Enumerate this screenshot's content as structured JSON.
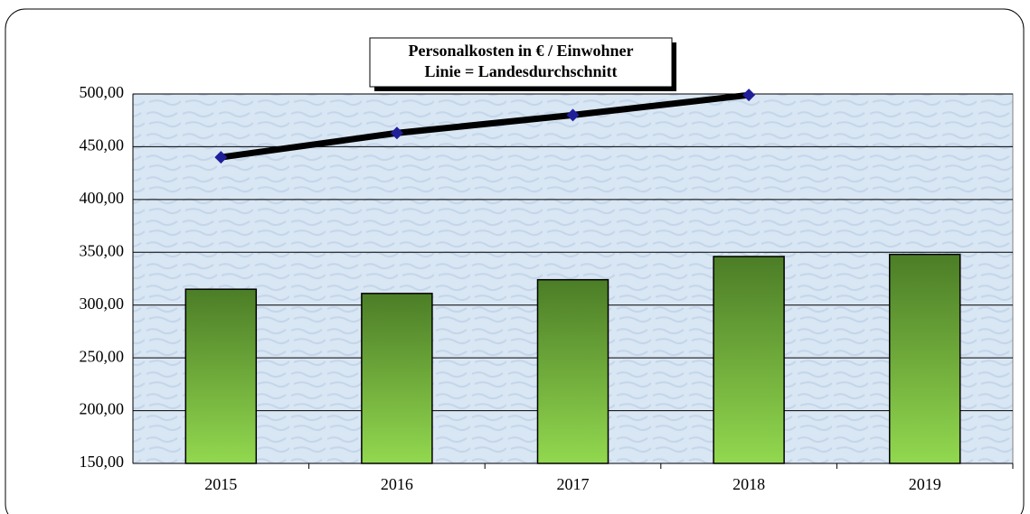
{
  "chart_data": {
    "type": "bar",
    "title": "Personalkosten in € / Einwohner",
    "subtitle": "Linie = Landesdurchschnitt",
    "categories": [
      "2015",
      "2016",
      "2017",
      "2018",
      "2019"
    ],
    "series": [
      {
        "type": "bar",
        "color": "#6fa83a",
        "values": [
          315,
          311,
          324,
          346,
          348
        ]
      },
      {
        "type": "line",
        "color": "#000000",
        "marker_color": "#1f1f9a",
        "values": [
          440,
          463,
          480,
          499,
          null
        ]
      }
    ],
    "ylim": [
      150,
      500
    ],
    "yticks": [
      {
        "value": 150,
        "label": "150,00"
      },
      {
        "value": 200,
        "label": "200,00"
      },
      {
        "value": 250,
        "label": "250,00"
      },
      {
        "value": 300,
        "label": "300,00"
      },
      {
        "value": 350,
        "label": "350,00"
      },
      {
        "value": 400,
        "label": "400,00"
      },
      {
        "value": 450,
        "label": "450,00"
      },
      {
        "value": 500,
        "label": "500,00"
      }
    ],
    "grid": true
  }
}
